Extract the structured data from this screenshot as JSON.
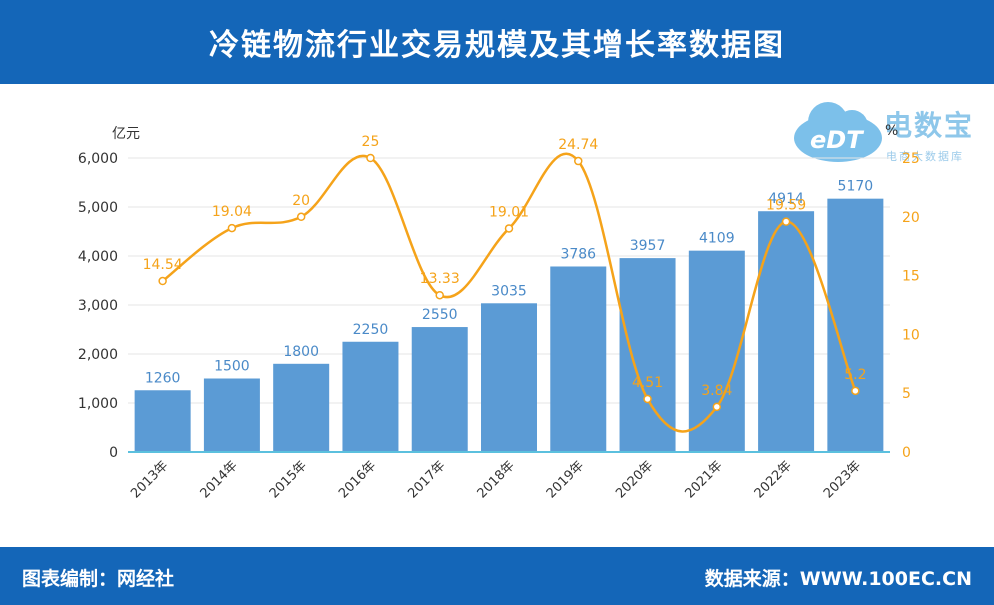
{
  "header": {
    "title": "冷链物流行业交易规模及其增长率数据图"
  },
  "footer": {
    "left": "图表编制：网经社",
    "right": "数据来源：WWW.100EC.CN"
  },
  "logo": {
    "brand": "电数宝",
    "sub": "电商大数据库",
    "mark": "eDT"
  },
  "chart_data": {
    "type": "bar",
    "categories": [
      "2013年",
      "2014年",
      "2015年",
      "2016年",
      "2017年",
      "2018年",
      "2019年",
      "2020年",
      "2021年",
      "2022年",
      "2023年"
    ],
    "series": [
      {
        "type": "bar",
        "axis": "left",
        "values": [
          1260,
          1500,
          1800,
          2250,
          2550,
          3035,
          3786,
          3957,
          4109,
          4914,
          5170
        ],
        "color": "#5b9bd5"
      },
      {
        "type": "line",
        "axis": "right",
        "values": [
          14.54,
          19.04,
          20,
          25,
          13.33,
          19.01,
          24.74,
          4.51,
          3.84,
          19.59,
          5.2
        ],
        "color": "#f5a31a"
      }
    ],
    "y_left": {
      "unit": "亿元",
      "ylim": [
        0,
        6000
      ],
      "ticks": [
        "0",
        "1,000",
        "2,000",
        "3,000",
        "4,000",
        "5,000",
        "6,000"
      ]
    },
    "y_right": {
      "unit": "%",
      "ylim": [
        0,
        25
      ],
      "ticks": [
        "0",
        "5",
        "10",
        "15",
        "20",
        "25"
      ]
    },
    "grid": true
  }
}
